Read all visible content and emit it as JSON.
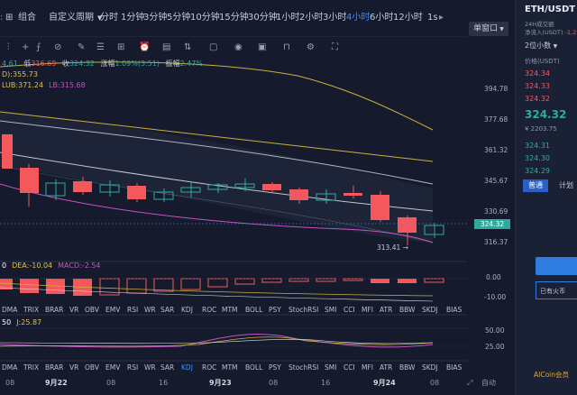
{
  "toolbar": {
    "group_label": "组合",
    "custom_period": "自定义周期",
    "periods": [
      "分时",
      "1分钟",
      "3分钟",
      "5分钟",
      "10分钟",
      "15分钟",
      "30分钟",
      "1小时",
      "2小时",
      "3小时",
      "4小时",
      "6小时",
      "12小时",
      "1s"
    ],
    "active_period": "4小时",
    "window_mode": "单窗口"
  },
  "info_row": {
    "open_val": "4.61",
    "low_label": "低",
    "low_val": "316.69",
    "close_label": "收",
    "close_val": "324.32",
    "change_label": "涨幅",
    "change_val": "1.09%(3.51)",
    "amp_label": "振幅",
    "amp_val": "2.47%",
    "ma_line": "D):355.73",
    "boll_line": "LUB:371.24",
    "lb_line": "LB:315.68"
  },
  "macd_info": {
    "dif": "0",
    "dea": "DEA:-10.04",
    "macd": "MACD:-2.54"
  },
  "kdj_info": {
    "k": "50",
    "j": "J:25.87"
  },
  "price_axis": [
    "394.78",
    "377.68",
    "361.32",
    "345.67",
    "330.69",
    "316.37"
  ],
  "current_price": "324.32",
  "low_marker": "313.41",
  "macd_axis": [
    "0.00",
    "-10.00"
  ],
  "kdj_axis": [
    "50.00",
    "25.00"
  ],
  "indicators": [
    "DMA",
    "TRIX",
    "BRAR",
    "VR",
    "OBV",
    "EMV",
    "RSI",
    "WR",
    "SAR",
    "KDJ",
    "ROC",
    "MTM",
    "BOLL",
    "PSY",
    "StochRSI",
    "SMI",
    "CCI",
    "MFI",
    "ATR",
    "BBW",
    "SKDJ",
    "BIAS"
  ],
  "active_indicator": "KDJ",
  "dates": [
    {
      "t": "08",
      "bold": false
    },
    {
      "t": "9月22",
      "bold": true
    },
    {
      "t": "08",
      "bold": false
    },
    {
      "t": "16",
      "bold": false
    },
    {
      "t": "9月23",
      "bold": true
    },
    {
      "t": "08",
      "bold": false
    },
    {
      "t": "16",
      "bold": false
    },
    {
      "t": "9月24",
      "bold": true
    },
    {
      "t": "08",
      "bold": false
    }
  ],
  "bottom_right": {
    "zoom_icon": "⤢",
    "label1": "自动"
  },
  "right_panel": {
    "pair": "ETH/USDT",
    "sub1": "24H成交额",
    "sub2": "净流入(USDT)",
    "neg": "-1,276",
    "depth": "2位小数",
    "price_hdr": "价格(USDT)",
    "asks": [
      "324.34",
      "324.33",
      "324.32"
    ],
    "last": "324.32",
    "last_cny": "¥ 2203.75",
    "bids": [
      "324.31",
      "324.30",
      "324.29"
    ],
    "tab1": "普通",
    "tab2": "计划",
    "btn_bottom": "已有火币",
    "brand": "AICoin会员"
  },
  "colors": {
    "up": "#2eaba0",
    "down": "#f4585d",
    "accent": "#3e8bff",
    "bg": "#151b2c"
  }
}
